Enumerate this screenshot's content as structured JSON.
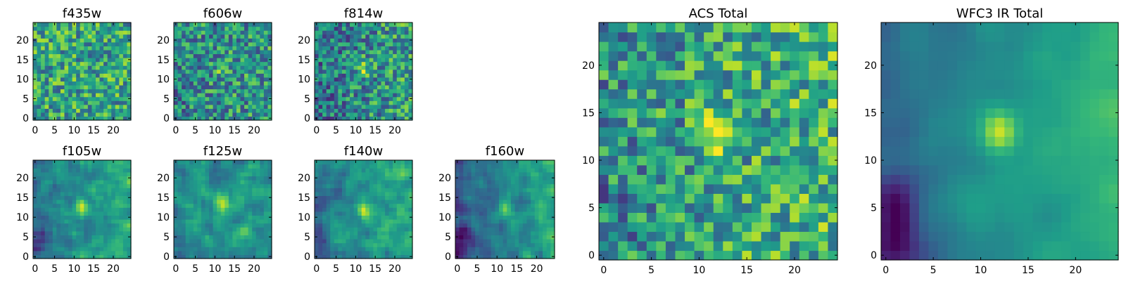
{
  "chart_data": [
    {
      "type": "heatmap",
      "title": "f435w",
      "colormap": "viridis",
      "grid": false,
      "xlim": [
        -0.5,
        24.5
      ],
      "ylim": [
        -0.5,
        24.5
      ],
      "xticks": [
        0,
        5,
        10,
        15,
        20
      ],
      "yticks": [
        0,
        5,
        10,
        15,
        20
      ],
      "pixels": 25,
      "source_peak": null
    },
    {
      "type": "heatmap",
      "title": "f606w",
      "colormap": "viridis",
      "grid": false,
      "xlim": [
        -0.5,
        24.5
      ],
      "ylim": [
        -0.5,
        24.5
      ],
      "xticks": [
        0,
        5,
        10,
        15,
        20
      ],
      "yticks": [
        0,
        5,
        10,
        15,
        20
      ],
      "pixels": 25,
      "source_peak": [
        12,
        13
      ]
    },
    {
      "type": "heatmap",
      "title": "f814w",
      "colormap": "viridis",
      "grid": false,
      "xlim": [
        -0.5,
        24.5
      ],
      "ylim": [
        -0.5,
        24.5
      ],
      "xticks": [
        0,
        5,
        10,
        15,
        20
      ],
      "yticks": [
        0,
        5,
        10,
        15,
        20
      ],
      "pixels": 25,
      "source_peak": [
        12,
        13
      ]
    },
    {
      "type": "heatmap",
      "title": "f105w",
      "colormap": "viridis",
      "grid": false,
      "xlim": [
        -0.5,
        24.5
      ],
      "ylim": [
        -0.5,
        24.5
      ],
      "xticks": [
        0,
        5,
        10,
        15,
        20
      ],
      "yticks": [
        0,
        5,
        10,
        15,
        20
      ],
      "pixels": 25,
      "source_peak": [
        12,
        13
      ]
    },
    {
      "type": "heatmap",
      "title": "f125w",
      "colormap": "viridis",
      "grid": false,
      "xlim": [
        -0.5,
        24.5
      ],
      "ylim": [
        -0.5,
        24.5
      ],
      "xticks": [
        0,
        5,
        10,
        15,
        20
      ],
      "yticks": [
        0,
        5,
        10,
        15,
        20
      ],
      "pixels": 25,
      "source_peak": [
        12,
        13
      ]
    },
    {
      "type": "heatmap",
      "title": "f140w",
      "colormap": "viridis",
      "grid": false,
      "xlim": [
        -0.5,
        24.5
      ],
      "ylim": [
        -0.5,
        24.5
      ],
      "xticks": [
        0,
        5,
        10,
        15,
        20
      ],
      "yticks": [
        0,
        5,
        10,
        15,
        20
      ],
      "pixels": 25,
      "source_peak": [
        12,
        12
      ]
    },
    {
      "type": "heatmap",
      "title": "f160w",
      "colormap": "viridis",
      "grid": false,
      "xlim": [
        -0.5,
        24.5
      ],
      "ylim": [
        -0.5,
        24.5
      ],
      "xticks": [
        0,
        5,
        10,
        15,
        20
      ],
      "yticks": [
        0,
        5,
        10,
        15,
        20
      ],
      "pixels": 25,
      "source_peak": [
        12,
        12
      ]
    },
    {
      "type": "heatmap",
      "title": "ACS Total",
      "colormap": "viridis",
      "grid": false,
      "xlim": [
        -0.5,
        24.5
      ],
      "ylim": [
        -0.5,
        24.5
      ],
      "xticks": [
        0,
        5,
        10,
        15,
        20
      ],
      "yticks": [
        0,
        5,
        10,
        15,
        20
      ],
      "pixels": 25,
      "source_peak": [
        12,
        13
      ]
    },
    {
      "type": "heatmap",
      "title": "WFC3 IR Total",
      "colormap": "viridis",
      "grid": false,
      "xlim": [
        -0.5,
        24.5
      ],
      "ylim": [
        -0.5,
        24.5
      ],
      "xticks": [
        0,
        5,
        10,
        15,
        20
      ],
      "yticks": [
        0,
        5,
        10,
        15,
        20
      ],
      "pixels": 25,
      "source_peak": [
        12,
        13
      ]
    }
  ]
}
